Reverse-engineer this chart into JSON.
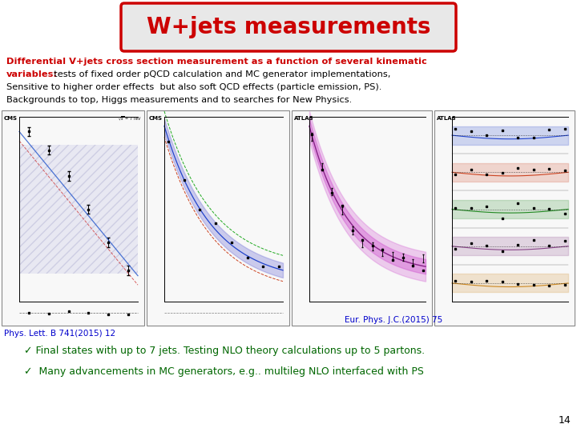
{
  "title": "W+jets measurements",
  "title_color": "#cc0000",
  "title_bg_color": "#e8e8e8",
  "title_border_color": "#cc0000",
  "background_color": "#ffffff",
  "bold_line1": "Differential V+jets cross section measurement as a function of several kinematic",
  "bold_line2": "variables:",
  "normal_line2_cont": "  tests of fixed order pQCD calculation and MC generator implementations,",
  "normal_line3": "Sensitive to higher order effects  but also soft QCD effects (particle emission, PS).",
  "normal_line4": "Backgrounds to top, Higgs measurements and to searches for New Physics.",
  "ref1": "Phys. Lett. B 741(2015) 12",
  "ref2": "Eur. Phys. J.C.(2015) 75",
  "bullet1": "✓ Final states with up to 7 jets. Testing NLO theory calculations up to 5 partons.",
  "bullet2": "✓  Many advancements in MC generators, e.g.. multileg NLO interfaced with PS",
  "bullet_color": "#006600",
  "ref_color": "#0000cc",
  "page_number": "14",
  "slide_bg": "#ffffff",
  "panel_labels": [
    "CMS",
    "CMS",
    "ATLAS",
    "ATLAS"
  ],
  "panel_bg": [
    "#ffffff",
    "#ffffff",
    "#ffffff",
    "#ffffff"
  ]
}
